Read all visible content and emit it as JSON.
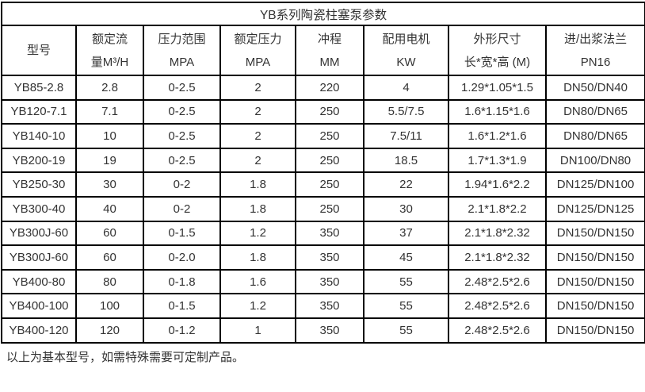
{
  "page": {
    "title": "YB系列陶瓷柱塞泵参数",
    "footnote": "以上为基本型号，如需特殊需要可定制产品。"
  },
  "table": {
    "headers": [
      {
        "line1": "型号",
        "line2": ""
      },
      {
        "line1": "额定流",
        "line2": "量M³/H"
      },
      {
        "line1": "压力范围",
        "line2": "MPA"
      },
      {
        "line1": "额定压力",
        "line2": "MPA"
      },
      {
        "line1": "冲程",
        "line2": "MM"
      },
      {
        "line1": "配用电机",
        "line2": "KW"
      },
      {
        "line1": "外形尺寸",
        "line2": "长*宽*高 (M)"
      },
      {
        "line1": "进/出浆法兰",
        "line2": "PN16"
      }
    ],
    "rows": [
      [
        "YB85-2.8",
        "2.8",
        "0-2.5",
        "2",
        "220",
        "4",
        "1.29*1.05*1.5",
        "DN50/DN40"
      ],
      [
        "YB120-7.1",
        "7.1",
        "0-2.5",
        "2",
        "250",
        "5.5/7.5",
        "1.6*1.15*1.6",
        "DN80/DN65"
      ],
      [
        "YB140-10",
        "10",
        "0-2.5",
        "2",
        "250",
        "7.5/11",
        "1.6*1.2*1.6",
        "DN80/DN65"
      ],
      [
        "YB200-19",
        "19",
        "0-2.5",
        "2",
        "250",
        "18.5",
        "1.7*1.3*1.9",
        "DN100/DN80"
      ],
      [
        "YB250-30",
        "30",
        "0-2",
        "1.8",
        "250",
        "22",
        "1.94*1.6*2.2",
        "DN125/DN100"
      ],
      [
        "YB300-40",
        "40",
        "0-2",
        "1.8",
        "250",
        "30",
        "2.1*1.8*2.2",
        "DN125/DN125"
      ],
      [
        "YB300J-60",
        "60",
        "0-1.5",
        "1.2",
        "350",
        "37",
        "2.1*1.8*2.32",
        "DN150/DN150"
      ],
      [
        "YB300J-60",
        "60",
        "0-2.0",
        "1.8",
        "350",
        "45",
        "2.1*1.8*2.32",
        "DN150/DN150"
      ],
      [
        "YB400-80",
        "80",
        "0-1.8",
        "1.6",
        "350",
        "55",
        "2.48*2.5*2.6",
        "DN150/DN150"
      ],
      [
        "YB400-100",
        "100",
        "0-1.5",
        "1.2",
        "350",
        "55",
        "2.48*2.5*2.6",
        "DN150/DN150"
      ],
      [
        "YB400-120",
        "120",
        "0-1.2",
        "1",
        "350",
        "55",
        "2.48*2.5*2.6",
        "DN150/DN150"
      ]
    ]
  },
  "colors": {
    "border": "#000000",
    "text": "#333333",
    "background": "#ffffff"
  }
}
